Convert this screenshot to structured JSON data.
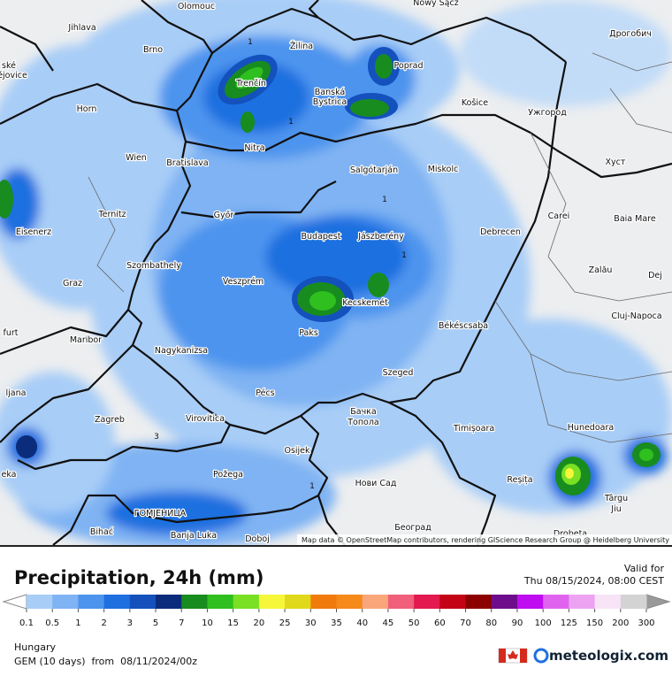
{
  "map": {
    "cities": [
      "Olomouc",
      "Nowy Sącz",
      "Jihlava",
      "Дрогобич",
      "Brno",
      "Žilina",
      "Poprad",
      "ské",
      "ějovice",
      "Trenčín",
      "Banská",
      "Bystrica",
      "Košice",
      "Horn",
      "Ужгород",
      "Nitra",
      "Wien",
      "Bratislava",
      "Salgótarján",
      "Miskolc",
      "Хуст",
      "Ternitz",
      "Győr",
      "Carei",
      "Baia Mare",
      "Eisenerz",
      "Budapest",
      "Jászberény",
      "Debrecen",
      "Szombathely",
      "Zalău",
      "Dej",
      "Graz",
      "Veszprém",
      "Kecskemét",
      "Cluj-Napoca",
      "furt",
      "Paks",
      "Békéscsaba",
      "Maribor",
      "Nagykanizsa",
      "Szeged",
      "ljana",
      "Pécs",
      "Zagreb",
      "Virovitica",
      "Бачка",
      "Топола",
      "Timișoara",
      "Hunedoara",
      "eka",
      "Osijek",
      "Požega",
      "Reșița",
      "Нови Сад",
      "Târgu",
      "Jiu",
      "ГОМЈЕНИЦА",
      "Bihać",
      "Banja Luka",
      "Doboj",
      "Београд",
      "Drobeta"
    ],
    "contour_labels": [
      "1",
      "1",
      "1",
      "3",
      "1",
      "1"
    ],
    "attribution": "Map data © OpenStreetMap contributors, rendering GIScience Research Group @ Heidelberg University"
  },
  "legend": {
    "title": "Precipitation, 24h (mm)",
    "valid_label": "Valid for",
    "valid_time": "Thu 08/15/2024, 08:00 CEST",
    "ticks": [
      0.1,
      0.5,
      1,
      2,
      3,
      5,
      7,
      10,
      15,
      20,
      25,
      30,
      35,
      40,
      45,
      50,
      60,
      70,
      80,
      90,
      100,
      125,
      150,
      200,
      300
    ],
    "colors": [
      "#a8cdf7",
      "#7fb3f3",
      "#4d94ee",
      "#1f6fe0",
      "#1451bd",
      "#0a2c7a",
      "#188c1e",
      "#2fbf1f",
      "#79e023",
      "#f6f63a",
      "#e0d81a",
      "#f07b0c",
      "#f5891a",
      "#f9a77a",
      "#f0607a",
      "#e3194f",
      "#c40416",
      "#8c0000",
      "#6e0d8c",
      "#bf0cf0",
      "#e063f0",
      "#eda3f2",
      "#f7e4f7",
      "#d3d3d3"
    ]
  },
  "footer": {
    "region": "Hungary",
    "model": "GEM (10 days)  from  08/11/2024/00z",
    "brand": "meteologix.com"
  }
}
